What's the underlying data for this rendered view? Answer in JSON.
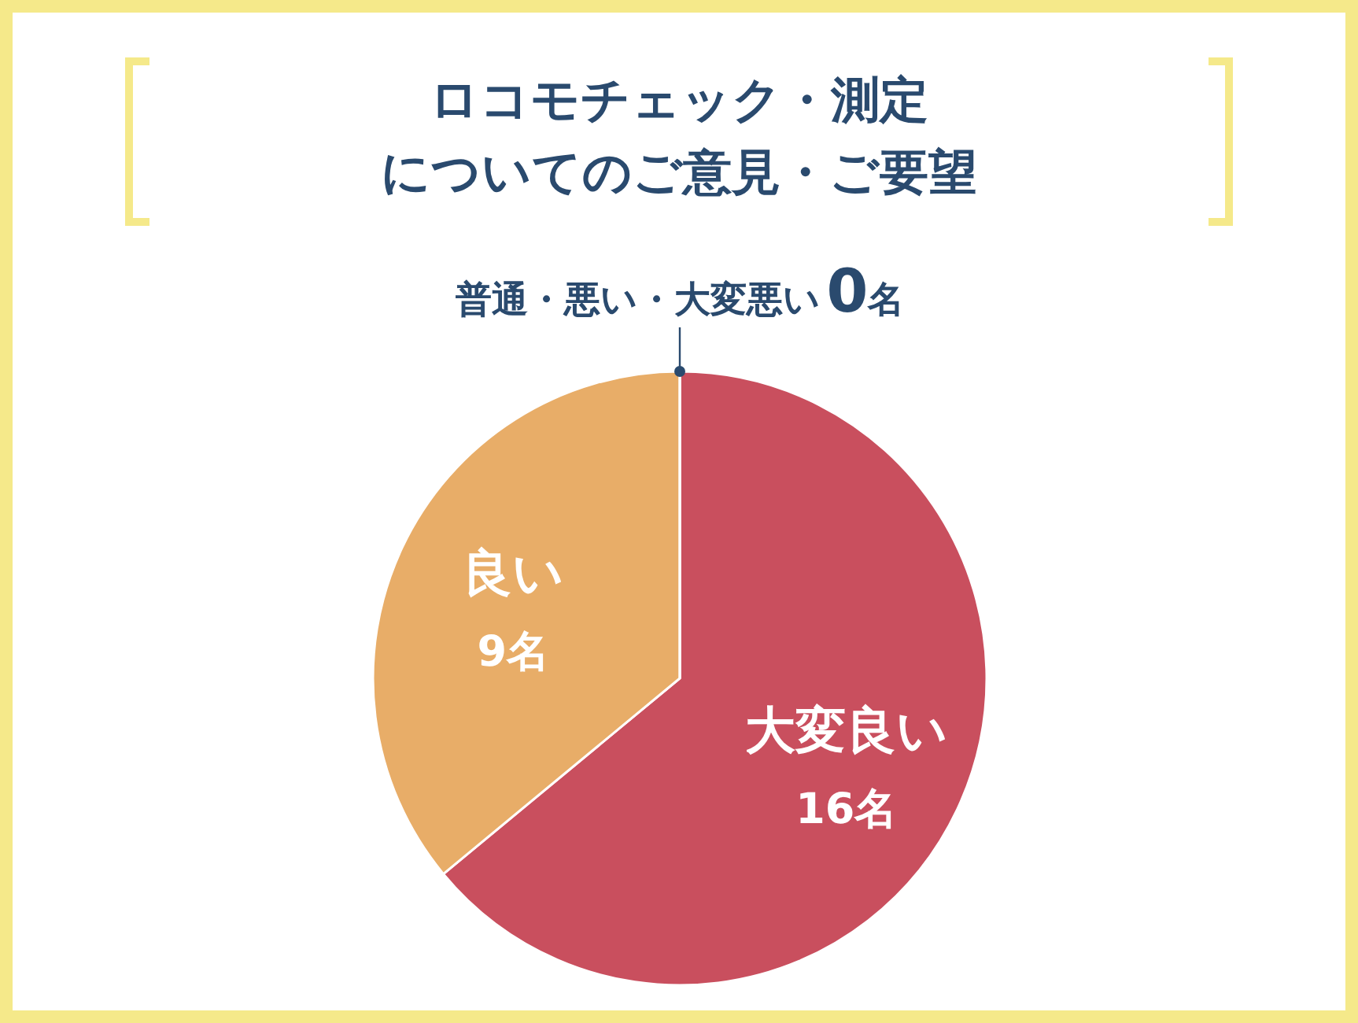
{
  "chart_data": {
    "type": "pie",
    "title": "ロコモチェック・測定",
    "subtitle": "についてのご意見・ご要望",
    "categories": [
      "大変良い",
      "良い",
      "普通・悪い・大変悪い"
    ],
    "values": [
      16,
      9,
      0
    ],
    "colors": [
      "#c94f5e",
      "#e8ad68",
      "#2a4a6e"
    ],
    "value_labels": [
      "16名",
      "9名",
      "0名"
    ]
  }
}
